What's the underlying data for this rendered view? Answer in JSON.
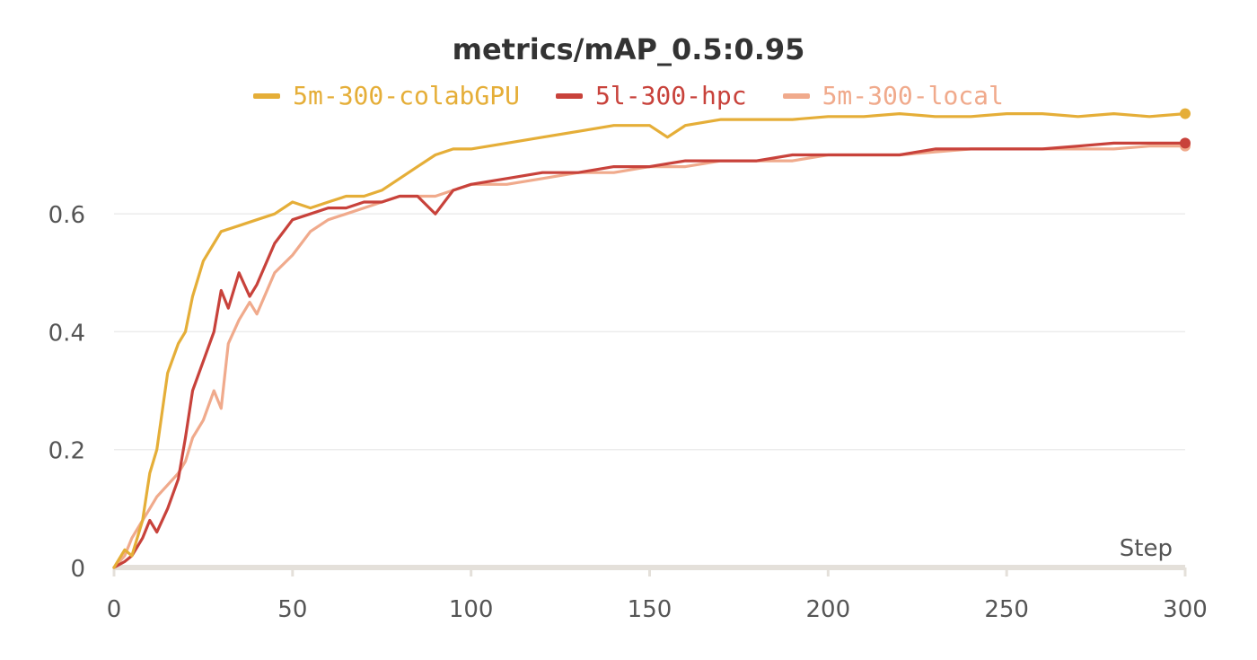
{
  "chart_data": {
    "type": "line",
    "title": "metrics/mAP_0.5:0.95",
    "xlabel": "Step",
    "ylabel": "",
    "xlim": [
      0,
      300
    ],
    "ylim": [
      0,
      0.78
    ],
    "x_ticks": [
      "0",
      "50",
      "100",
      "150",
      "200",
      "250",
      "300"
    ],
    "y_ticks": [
      "0",
      "0.2",
      "0.4",
      "0.6"
    ],
    "grid": "horizontal",
    "legend_position": "top-center",
    "series": [
      {
        "name": "5m-300-colabGPU",
        "color": "#e5ae38",
        "x": [
          0,
          3,
          5,
          8,
          10,
          12,
          15,
          18,
          20,
          22,
          25,
          28,
          30,
          35,
          40,
          45,
          50,
          55,
          60,
          65,
          70,
          75,
          80,
          85,
          90,
          95,
          100,
          110,
          120,
          130,
          140,
          150,
          155,
          160,
          170,
          180,
          190,
          200,
          210,
          220,
          230,
          240,
          250,
          260,
          270,
          280,
          290,
          300
        ],
        "y": [
          0.0,
          0.03,
          0.02,
          0.08,
          0.16,
          0.2,
          0.33,
          0.38,
          0.4,
          0.46,
          0.52,
          0.55,
          0.57,
          0.58,
          0.59,
          0.6,
          0.62,
          0.61,
          0.62,
          0.63,
          0.63,
          0.64,
          0.66,
          0.68,
          0.7,
          0.71,
          0.71,
          0.72,
          0.73,
          0.74,
          0.75,
          0.75,
          0.73,
          0.75,
          0.76,
          0.76,
          0.76,
          0.765,
          0.765,
          0.77,
          0.765,
          0.765,
          0.77,
          0.77,
          0.765,
          0.77,
          0.765,
          0.77
        ]
      },
      {
        "name": "5l-300-hpc",
        "color": "#c8423b",
        "x": [
          0,
          3,
          5,
          8,
          10,
          12,
          15,
          18,
          20,
          22,
          25,
          28,
          30,
          32,
          35,
          38,
          40,
          45,
          50,
          55,
          60,
          65,
          70,
          75,
          80,
          85,
          90,
          95,
          100,
          110,
          120,
          130,
          140,
          150,
          160,
          170,
          180,
          190,
          200,
          210,
          220,
          230,
          240,
          250,
          260,
          270,
          280,
          290,
          300
        ],
        "y": [
          0.0,
          0.01,
          0.02,
          0.05,
          0.08,
          0.06,
          0.1,
          0.15,
          0.22,
          0.3,
          0.35,
          0.4,
          0.47,
          0.44,
          0.5,
          0.46,
          0.48,
          0.55,
          0.59,
          0.6,
          0.61,
          0.61,
          0.62,
          0.62,
          0.63,
          0.63,
          0.6,
          0.64,
          0.65,
          0.66,
          0.67,
          0.67,
          0.68,
          0.68,
          0.69,
          0.69,
          0.69,
          0.7,
          0.7,
          0.7,
          0.7,
          0.71,
          0.71,
          0.71,
          0.71,
          0.715,
          0.72,
          0.72,
          0.72
        ]
      },
      {
        "name": "5m-300-local",
        "color": "#f0aa8c",
        "x": [
          0,
          3,
          5,
          8,
          10,
          12,
          15,
          18,
          20,
          22,
          25,
          28,
          30,
          32,
          35,
          38,
          40,
          45,
          50,
          55,
          60,
          65,
          70,
          75,
          80,
          85,
          90,
          95,
          100,
          110,
          120,
          130,
          140,
          150,
          160,
          170,
          180,
          190,
          200,
          210,
          220,
          230,
          240,
          250,
          260,
          270,
          280,
          290,
          300
        ],
        "y": [
          0.0,
          0.02,
          0.05,
          0.08,
          0.1,
          0.12,
          0.14,
          0.16,
          0.18,
          0.22,
          0.25,
          0.3,
          0.27,
          0.38,
          0.42,
          0.45,
          0.43,
          0.5,
          0.53,
          0.57,
          0.59,
          0.6,
          0.61,
          0.62,
          0.63,
          0.63,
          0.63,
          0.64,
          0.65,
          0.65,
          0.66,
          0.67,
          0.67,
          0.68,
          0.68,
          0.69,
          0.69,
          0.69,
          0.7,
          0.7,
          0.7,
          0.705,
          0.71,
          0.71,
          0.71,
          0.71,
          0.71,
          0.715,
          0.715
        ]
      }
    ]
  }
}
